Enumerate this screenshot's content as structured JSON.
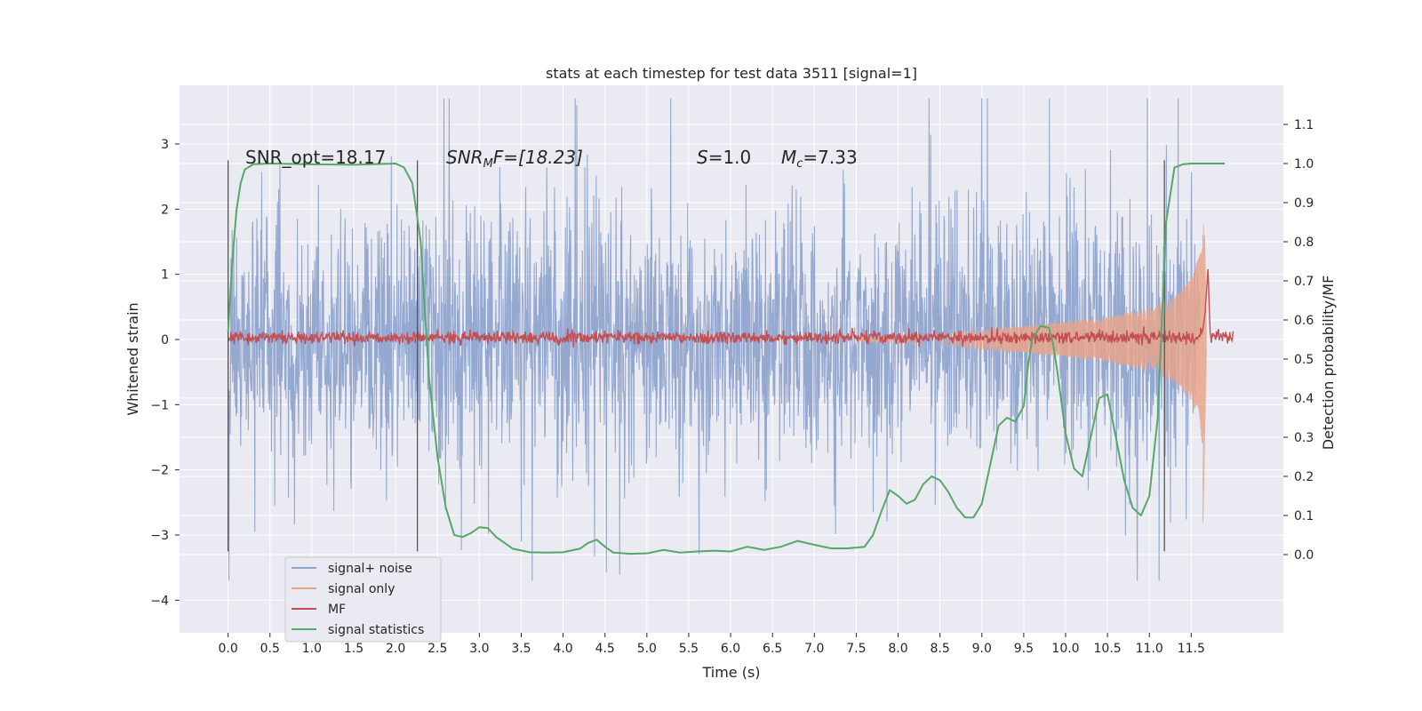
{
  "chart_data": {
    "type": "line",
    "title": "stats at each timestep for test data 3511 [signal=1]",
    "xlabel": "Time (s)",
    "ylabel_left": "Whitened strain",
    "ylabel_right": "Detection probability/MF",
    "xlim": [
      -0.58,
      12.6
    ],
    "ylim_left": [
      -4.5,
      3.9
    ],
    "ylim_right": [
      -0.2,
      1.2
    ],
    "x_ticks": [
      "0.0",
      "0.5",
      "1.0",
      "1.5",
      "2.0",
      "2.5",
      "3.0",
      "3.5",
      "4.0",
      "4.5",
      "5.0",
      "5.5",
      "6.0",
      "6.5",
      "7.0",
      "7.5",
      "8.0",
      "8.5",
      "9.0",
      "9.5",
      "10.0",
      "10.5",
      "11.0",
      "11.5"
    ],
    "y_ticks_left": [
      "3",
      "2",
      "1",
      "0",
      "−1",
      "−2",
      "−3",
      "−4"
    ],
    "y_ticks_right": [
      "1.1",
      "1.0",
      "0.9",
      "0.8",
      "0.7",
      "0.6",
      "0.5",
      "0.4",
      "0.3",
      "0.2",
      "0.1",
      "0.0"
    ],
    "grid": true,
    "legend_position": "bottom-left",
    "annotations": {
      "snr_opt": "SNR_opt=18.17",
      "snr_mf_base": "SNR",
      "snr_mf_sub": "M",
      "snr_mf_rest": "F=[18.23]",
      "s_label": "S",
      "s_value": "=1.0",
      "mc_label": "M",
      "mc_sub": "c",
      "mc_value": "=7.33"
    },
    "series": [
      {
        "name": "signal+ noise",
        "axis": "left",
        "color": "#8fa4cd",
        "x": [
          0.0,
          11.6
        ],
        "noise_amplitude": 3.0
      },
      {
        "name": "signal only",
        "axis": "left",
        "color": "#e8a58c",
        "x": [
          7.5,
          8.0,
          8.5,
          9.0,
          9.5,
          10.0,
          10.5,
          11.0,
          11.3,
          11.5,
          11.6,
          11.65,
          11.68
        ],
        "envelope": [
          0.02,
          0.06,
          0.1,
          0.15,
          0.2,
          0.27,
          0.35,
          0.48,
          0.65,
          0.95,
          1.3,
          1.8,
          0.3
        ]
      },
      {
        "name": "MF",
        "axis": "right",
        "color": "#c44e52",
        "x": [
          0.0,
          11.58,
          11.62,
          11.66,
          11.7,
          11.73,
          12.0
        ],
        "y": [
          0.555,
          0.555,
          0.56,
          0.6,
          0.72,
          0.56,
          0.555
        ]
      },
      {
        "name": "signal statistics",
        "axis": "right",
        "color": "#55a868",
        "x": [
          0.0,
          0.05,
          0.1,
          0.15,
          0.2,
          0.3,
          0.5,
          1.0,
          1.5,
          2.0,
          2.1,
          2.2,
          2.3,
          2.35,
          2.4,
          2.5,
          2.6,
          2.7,
          2.8,
          2.9,
          3.0,
          3.1,
          3.2,
          3.4,
          3.6,
          3.8,
          4.0,
          4.2,
          4.3,
          4.4,
          4.5,
          4.6,
          4.8,
          5.0,
          5.2,
          5.4,
          5.6,
          5.8,
          6.0,
          6.2,
          6.4,
          6.6,
          6.8,
          7.0,
          7.2,
          7.4,
          7.6,
          7.7,
          7.8,
          7.9,
          8.0,
          8.1,
          8.2,
          8.3,
          8.4,
          8.5,
          8.6,
          8.7,
          8.8,
          8.9,
          9.0,
          9.1,
          9.2,
          9.3,
          9.4,
          9.5,
          9.55,
          9.6,
          9.7,
          9.8,
          9.85,
          9.9,
          10.0,
          10.1,
          10.2,
          10.3,
          10.4,
          10.5,
          10.6,
          10.7,
          10.8,
          10.9,
          11.0,
          11.1,
          11.15,
          11.2,
          11.3,
          11.4,
          11.5,
          11.6,
          11.7,
          11.8,
          11.9
        ],
        "y": [
          0.57,
          0.75,
          0.88,
          0.95,
          0.985,
          0.998,
          1.0,
          0.998,
          0.997,
          1.0,
          0.99,
          0.95,
          0.8,
          0.62,
          0.45,
          0.25,
          0.12,
          0.05,
          0.045,
          0.055,
          0.07,
          0.068,
          0.045,
          0.015,
          0.006,
          0.005,
          0.006,
          0.015,
          0.03,
          0.038,
          0.02,
          0.005,
          0.002,
          0.003,
          0.012,
          0.005,
          0.008,
          0.01,
          0.008,
          0.02,
          0.012,
          0.02,
          0.035,
          0.025,
          0.016,
          0.016,
          0.02,
          0.05,
          0.11,
          0.165,
          0.15,
          0.13,
          0.14,
          0.18,
          0.2,
          0.19,
          0.16,
          0.12,
          0.095,
          0.095,
          0.13,
          0.23,
          0.33,
          0.35,
          0.34,
          0.38,
          0.48,
          0.55,
          0.585,
          0.58,
          0.54,
          0.47,
          0.31,
          0.22,
          0.2,
          0.3,
          0.4,
          0.41,
          0.3,
          0.19,
          0.12,
          0.1,
          0.15,
          0.35,
          0.6,
          0.85,
          0.99,
          0.998,
          1.0,
          1.0,
          1.0,
          1.0,
          1.0
        ]
      }
    ],
    "vertical_lines_x": [
      0.0,
      2.26,
      11.18
    ]
  }
}
